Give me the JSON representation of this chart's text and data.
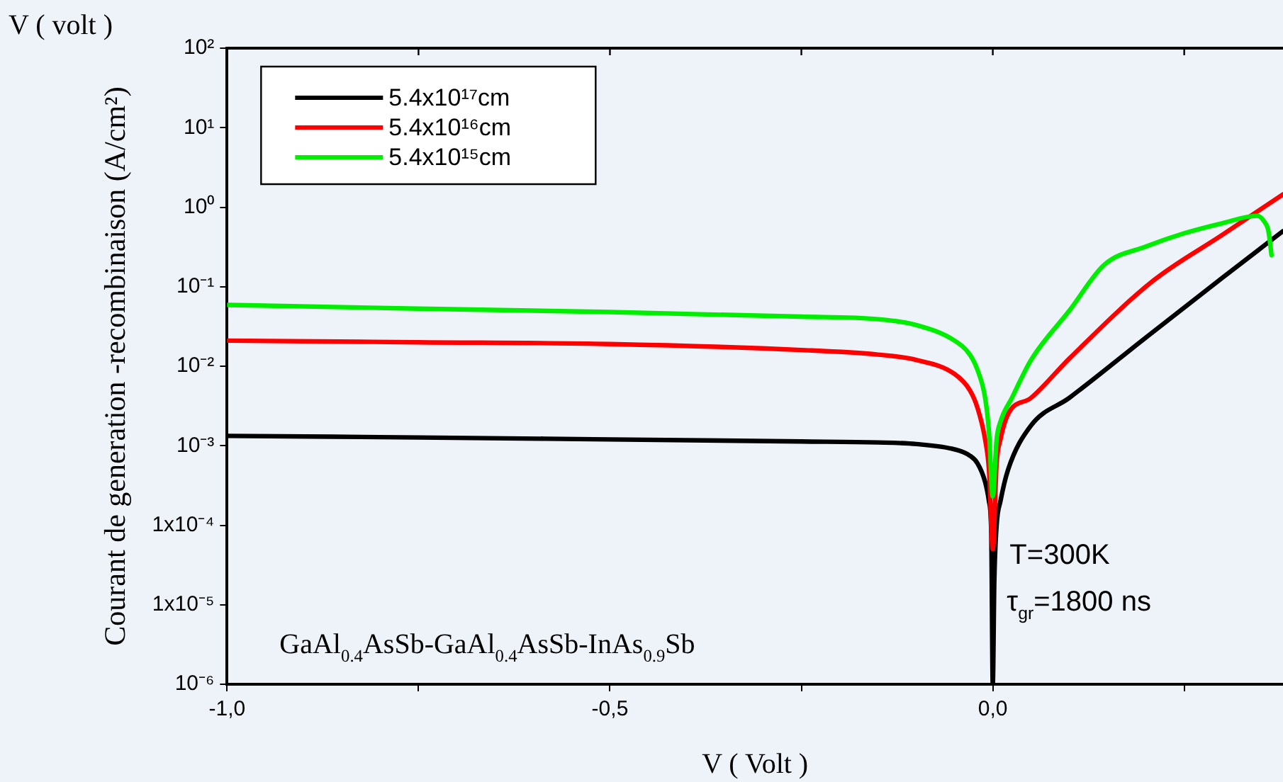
{
  "chart_data": {
    "type": "line",
    "xlabel": "V ( Volt )",
    "ylabel": "Courant de generation -recombinaison (A/cm²)",
    "annotations": [
      "V ( volt )",
      "GaAl$_{0.4}$AsSb-GaAl$_{0.4}$AsSb-InAs$_{0.9}$Sb",
      "T=300K",
      "τ$_{gr}$=1800 ns"
    ],
    "log": "y",
    "grid": false,
    "legend": "top left",
    "marker": "none",
    "line_style": "solid",
    "xlim": [
      -1,
      0.379
    ],
    "xticks": [
      {
        "value": -1,
        "label": "-1,0"
      },
      {
        "value": -0.75,
        "label": null
      },
      {
        "value": -0.5,
        "label": "-0,5"
      },
      {
        "value": -0.25,
        "label": null
      },
      {
        "value": 0,
        "label": "0,0"
      },
      {
        "value": 0.25,
        "label": null
      }
    ],
    "ylim": [
      1e-06,
      100
    ],
    "yticks": [
      {
        "value": 1e-06,
        "label": "10⁻⁶"
      },
      {
        "value": 1e-05,
        "label": "1x10⁻⁵"
      },
      {
        "value": 0.0001,
        "label": "1x10⁻⁴"
      },
      {
        "value": 0.001,
        "label": "10⁻³"
      },
      {
        "value": 0.01,
        "label": "10⁻²"
      },
      {
        "value": 0.1,
        "label": "10⁻¹"
      },
      {
        "value": 1,
        "label": "10⁰"
      },
      {
        "value": 10,
        "label": "10¹"
      },
      {
        "value": 100,
        "label": "10²"
      }
    ],
    "series": [
      {
        "name": "5.4x10¹⁷cm",
        "color": "#000000",
        "x": [
          -1,
          -0.75,
          -0.5,
          -0.25,
          -0.15,
          -0.1,
          -0.05,
          -0.03,
          -0.02,
          -0.01,
          -0.005,
          -0.002,
          0,
          0.002,
          0.005,
          0.01,
          0.02,
          0.05,
          0.1,
          0.2,
          0.3,
          0.379
        ],
        "values": [
          0.00133,
          0.00127,
          0.0012,
          0.00113,
          0.0011,
          0.00105,
          0.0009,
          0.00075,
          0.0006,
          0.00035,
          0.0002,
          8e-05,
          1e-06,
          2e-05,
          0.0001,
          0.0002,
          0.0005,
          0.0018,
          0.004,
          0.023,
          0.13,
          0.5
        ]
      },
      {
        "name": "5.4x10¹⁶cm",
        "color": "#ff0000",
        "x": [
          -1,
          -0.75,
          -0.5,
          -0.25,
          -0.15,
          -0.1,
          -0.05,
          -0.03,
          -0.02,
          -0.01,
          -0.005,
          0,
          0.005,
          0.01,
          0.02,
          0.05,
          0.1,
          0.21,
          0.3,
          0.379
        ],
        "values": [
          0.021,
          0.02,
          0.019,
          0.016,
          0.014,
          0.012,
          0.008,
          0.005,
          0.003,
          0.0012,
          0.0005,
          5e-05,
          0.0006,
          0.0012,
          0.0025,
          0.004,
          0.0125,
          0.12,
          0.45,
          1.45
        ]
      },
      {
        "name": "5.4x10¹⁵cm",
        "color": "#00ee00",
        "x": [
          -1,
          -0.75,
          -0.5,
          -0.25,
          -0.15,
          -0.1,
          -0.05,
          -0.03,
          -0.02,
          -0.01,
          -0.005,
          0,
          0.005,
          0.01,
          0.025,
          0.05,
          0.1,
          0.146,
          0.2,
          0.25,
          0.3,
          0.345,
          0.355,
          0.36,
          0.364
        ],
        "values": [
          0.059,
          0.053,
          0.048,
          0.042,
          0.039,
          0.033,
          0.021,
          0.014,
          0.009,
          0.004,
          0.0015,
          0.00023,
          0.0012,
          0.002,
          0.004,
          0.012,
          0.05,
          0.19,
          0.32,
          0.47,
          0.63,
          0.78,
          0.65,
          0.5,
          0.25
        ]
      }
    ]
  }
}
